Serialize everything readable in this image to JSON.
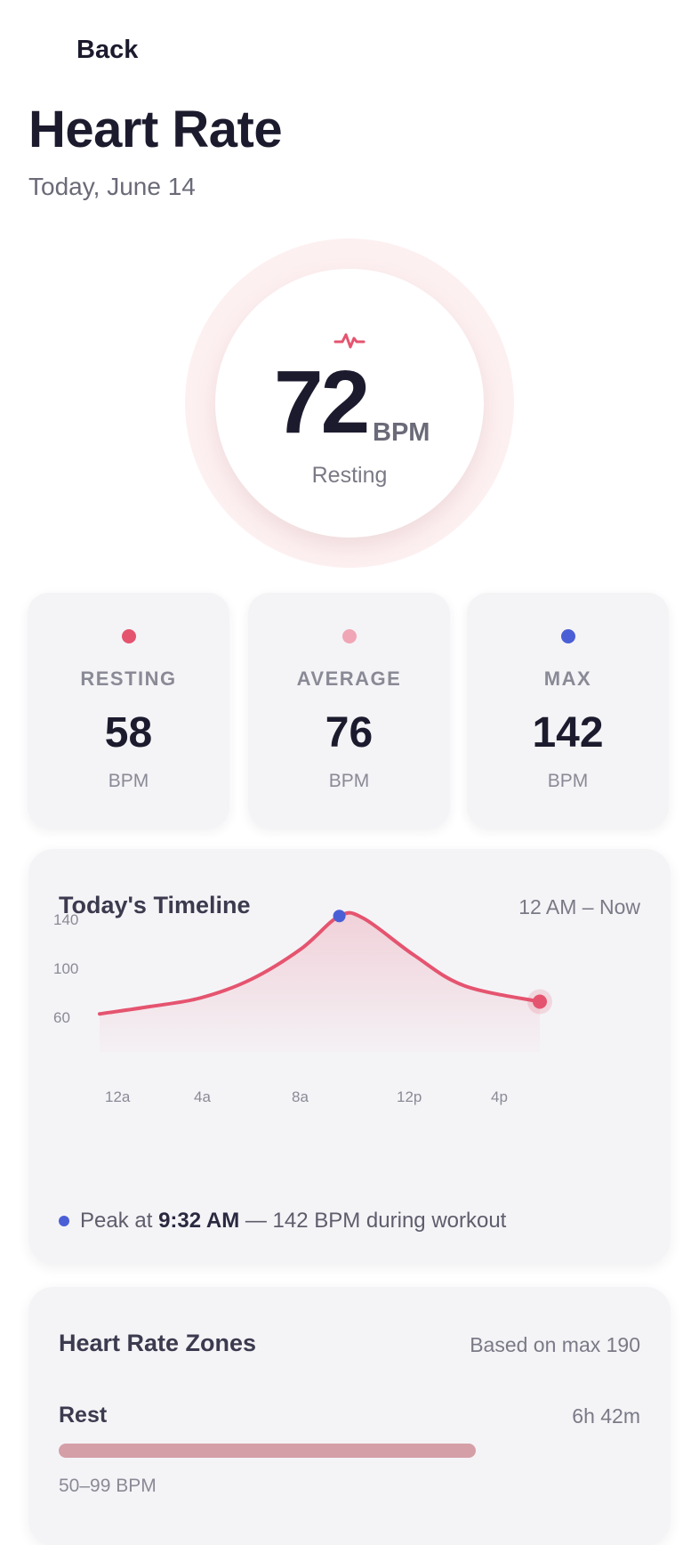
{
  "header": {
    "back_label": "Back",
    "title": "Heart Rate",
    "date": "Today, June 14"
  },
  "current": {
    "value": "72",
    "unit": "BPM",
    "state": "Resting",
    "icon": "heart-pulse-icon"
  },
  "stats": [
    {
      "label": "RESTING",
      "value": "58",
      "unit": "BPM",
      "color": "#e5546f"
    },
    {
      "label": "AVERAGE",
      "value": "76",
      "unit": "BPM",
      "color": "#f0a6b5"
    },
    {
      "label": "MAX",
      "value": "142",
      "unit": "BPM",
      "color": "#4a5fd6"
    }
  ],
  "timeline": {
    "title": "Today's Timeline",
    "range": "12 AM – Now",
    "peak_prefix": "Peak at",
    "peak_time": "9:32 AM",
    "peak_suffix": "— 142 BPM during workout"
  },
  "chart_data": {
    "type": "area",
    "x_ticks": [
      "12a",
      "4a",
      "8a",
      "12p",
      "4p"
    ],
    "y_ticks": [
      60,
      100,
      140
    ],
    "x_hours": [
      0,
      2,
      4,
      6,
      8,
      9.53,
      10.5,
      12.5,
      14.5,
      17.5
    ],
    "y_values": [
      62,
      68,
      75,
      90,
      115,
      142,
      140,
      110,
      85,
      72
    ],
    "ylim": [
      40,
      170
    ],
    "xlim": [
      0,
      17.5
    ],
    "peak": {
      "hour": 9.53,
      "value": 142
    },
    "current": {
      "hour": 17.5,
      "value": 72
    },
    "line_color": "#e5546f",
    "peak_color": "#4a5fd6"
  },
  "zones": {
    "title": "Heart Rate Zones",
    "basis": "Based on max 190",
    "items": [
      {
        "name": "Rest",
        "duration": "6h 42m",
        "range": "50–99 BPM",
        "fraction": 0.72,
        "color": "#d59fa7"
      }
    ]
  }
}
